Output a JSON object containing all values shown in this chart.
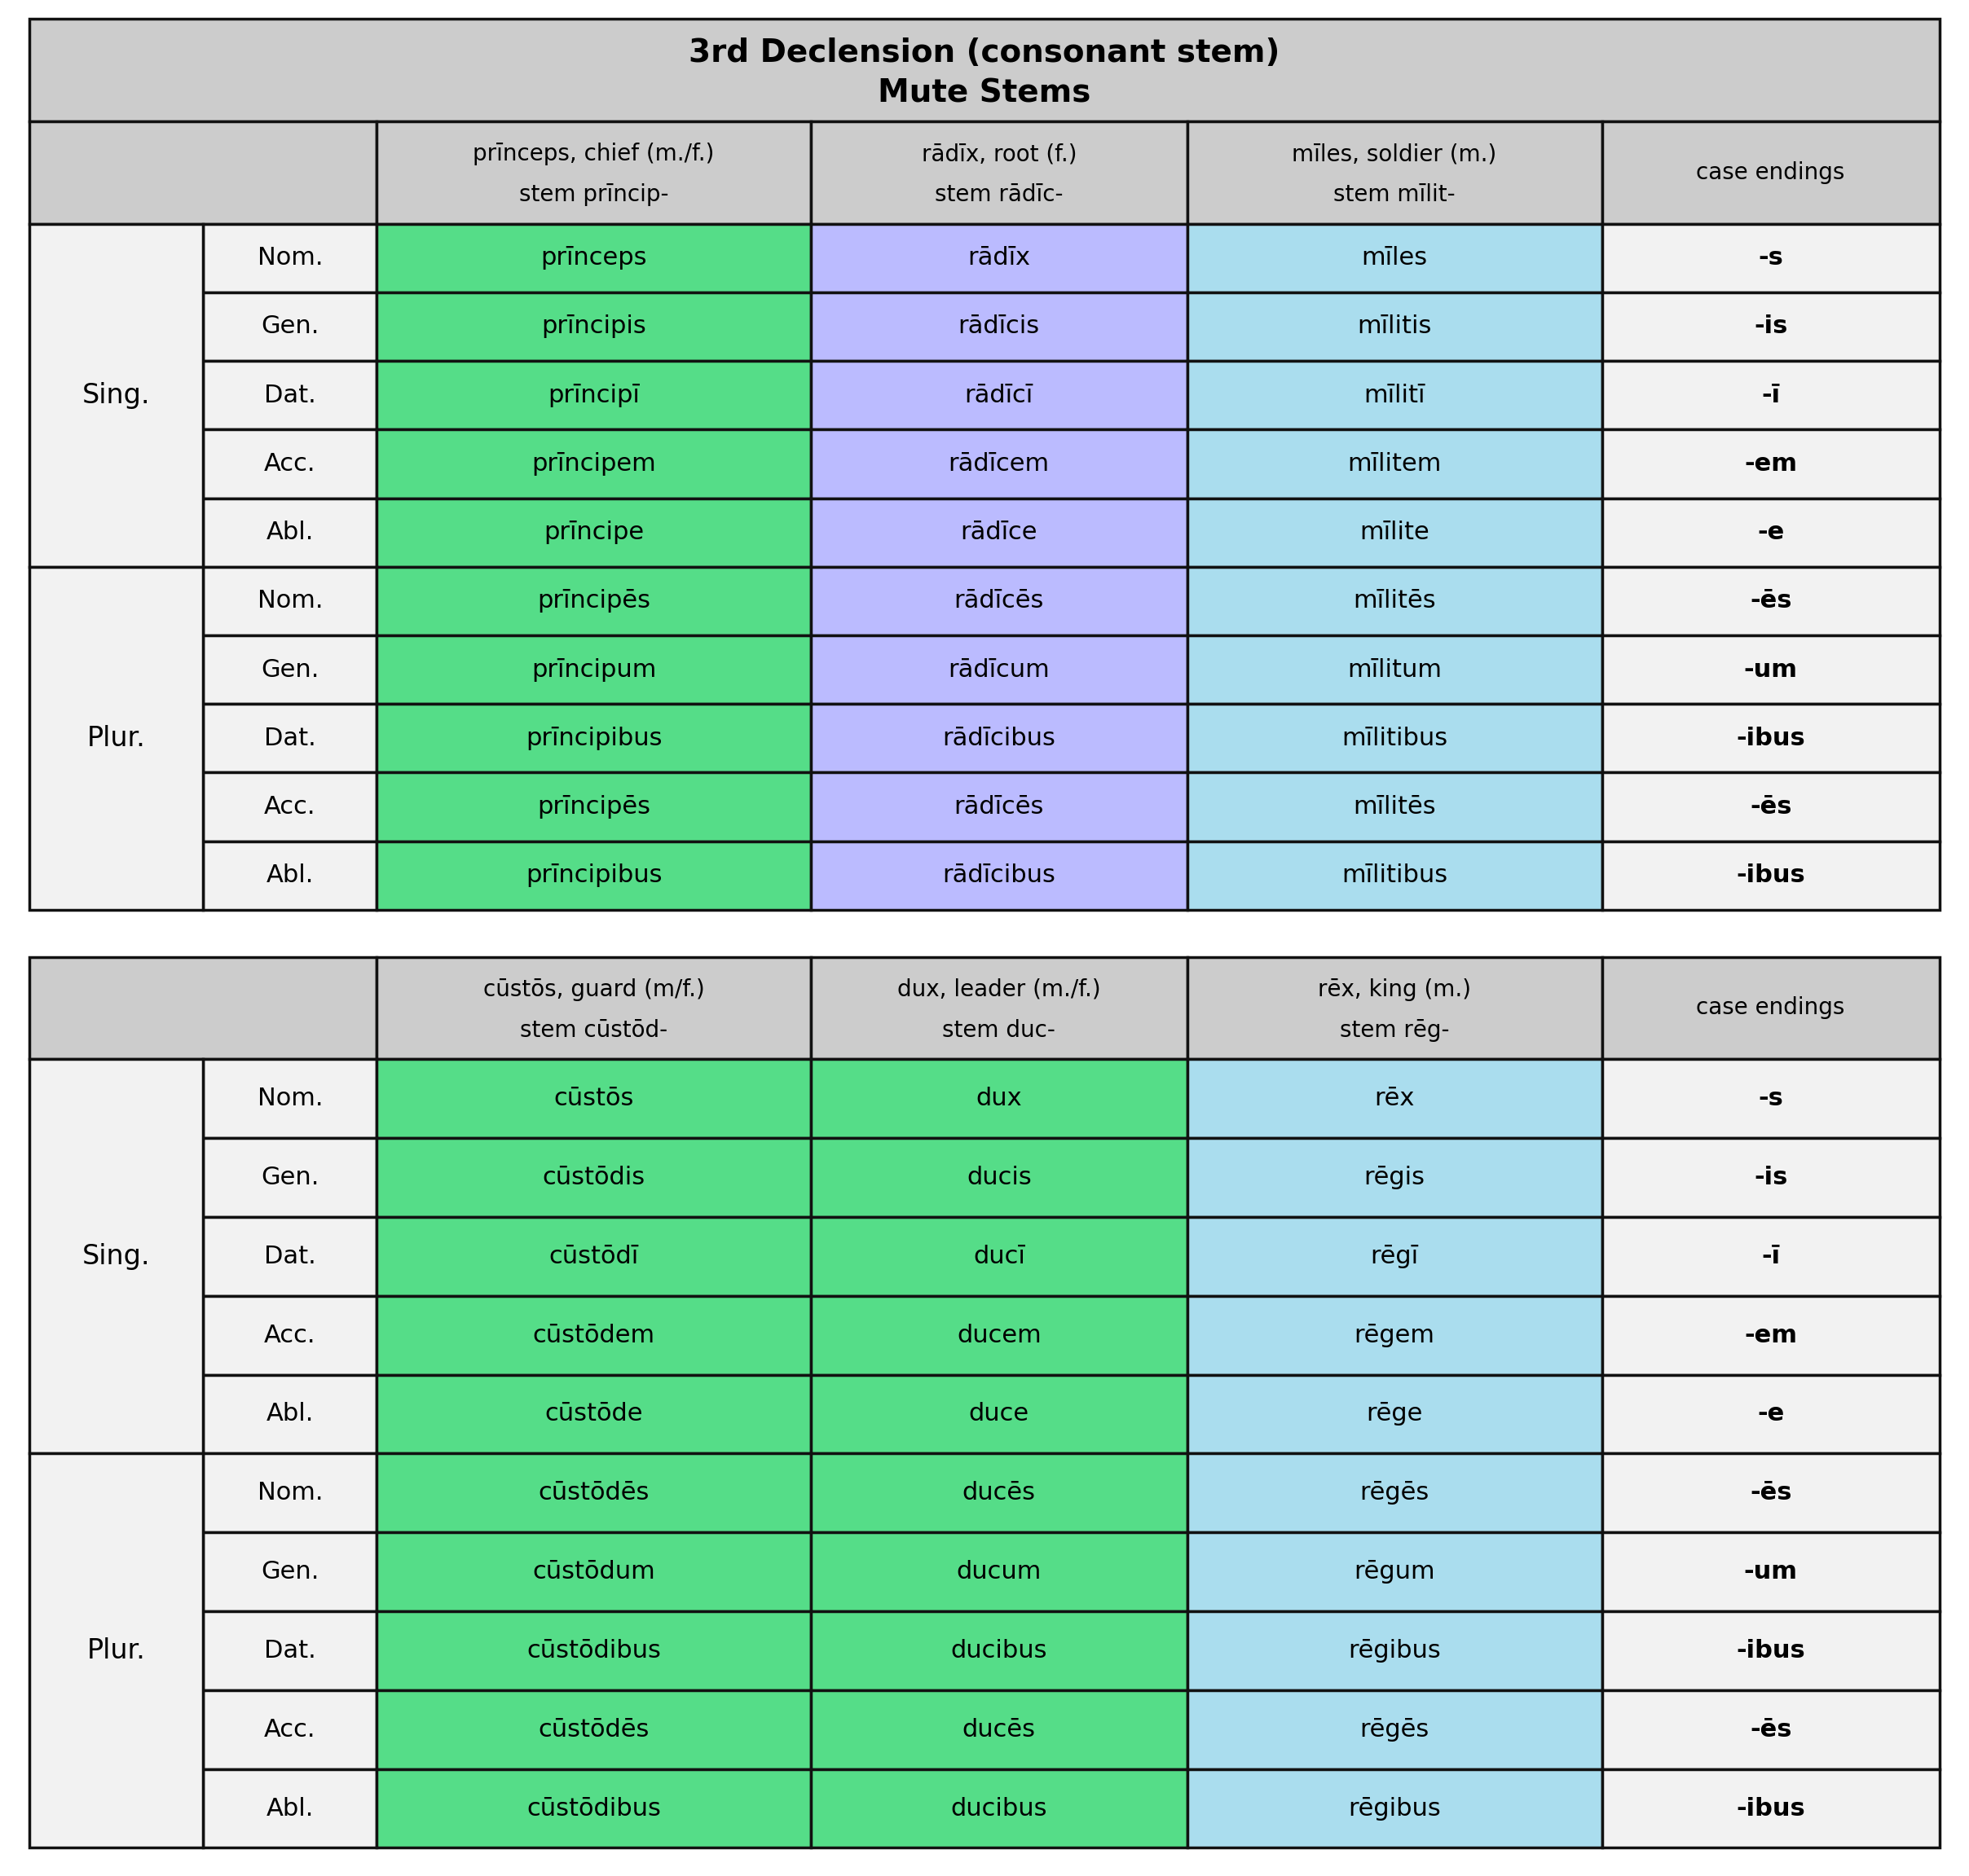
{
  "title1_line1": "3rd Declension (consonant stem)",
  "title1_line2": "Mute Stems",
  "header_bg": "#cccccc",
  "cell_green": "#55dd88",
  "cell_lavender": "#bbbbff",
  "cell_cyan": "#aaddee",
  "cell_white": "#f2f2f2",
  "border_color": "#111111",
  "table1": {
    "col_headers": [
      "",
      "prīnceps, chief (m./f.)\nstem prīncip-",
      "rādīx, root (f.)\nstem rādīc-",
      "mīles, soldier (m.)\nstem mīlit-",
      "case endings"
    ],
    "col_colors": [
      "",
      "green",
      "lavender",
      "cyan",
      ""
    ],
    "rows": [
      [
        "Sing.",
        "Nom.",
        "prīnceps",
        "rādīx",
        "mīles",
        "-s"
      ],
      [
        "Sing.",
        "Gen.",
        "prīncipis",
        "rādīcis",
        "mīlitis",
        "-is"
      ],
      [
        "Sing.",
        "Dat.",
        "prīncipī",
        "rādīcī",
        "mīlitī",
        "-ī"
      ],
      [
        "Sing.",
        "Acc.",
        "prīncipem",
        "rādīcem",
        "mīlitem",
        "-em"
      ],
      [
        "Sing.",
        "Abl.",
        "prīncipe",
        "rādīce",
        "mīlite",
        "-e"
      ],
      [
        "Plur.",
        "Nom.",
        "prīncipēs",
        "rādīcēs",
        "mīlitēs",
        "-ēs"
      ],
      [
        "Plur.",
        "Gen.",
        "prīncipum",
        "rādīcum",
        "mīlitum",
        "-um"
      ],
      [
        "Plur.",
        "Dat.",
        "prīncipibus",
        "rādīcibus",
        "mīlitibus",
        "-ibus"
      ],
      [
        "Plur.",
        "Acc.",
        "prīncipēs",
        "rādīcēs",
        "mīlitēs",
        "-ēs"
      ],
      [
        "Plur.",
        "Abl.",
        "prīncipibus",
        "rādīcibus",
        "mīlitibus",
        "-ibus"
      ]
    ]
  },
  "table2": {
    "col_headers": [
      "",
      "cūstōs, guard (m/f.)\nstem cūstōd-",
      "dux, leader (m./f.)\nstem duc-",
      "rēx, king (m.)\nstem rēg-",
      "case endings"
    ],
    "col_colors": [
      "",
      "green",
      "green",
      "cyan",
      ""
    ],
    "rows": [
      [
        "Sing.",
        "Nom.",
        "cūstōs",
        "dux",
        "rēx",
        "-s"
      ],
      [
        "Sing.",
        "Gen.",
        "cūstōdis",
        "ducis",
        "rēgis",
        "-is"
      ],
      [
        "Sing.",
        "Dat.",
        "cūstōdī",
        "ducī",
        "rēgī",
        "-ī"
      ],
      [
        "Sing.",
        "Acc.",
        "cūstōdem",
        "ducem",
        "rēgem",
        "-em"
      ],
      [
        "Sing.",
        "Abl.",
        "cūstōde",
        "duce",
        "rēge",
        "-e"
      ],
      [
        "Plur.",
        "Nom.",
        "cūstōdēs",
        "ducēs",
        "rēgēs",
        "-ēs"
      ],
      [
        "Plur.",
        "Gen.",
        "cūstōdum",
        "ducum",
        "rēgum",
        "-um"
      ],
      [
        "Plur.",
        "Dat.",
        "cūstōdibus",
        "ducibus",
        "rēgibus",
        "-ibus"
      ],
      [
        "Plur.",
        "Acc.",
        "cūstōdēs",
        "ducēs",
        "rēgēs",
        "-ēs"
      ],
      [
        "Plur.",
        "Abl.",
        "cūstōdibus",
        "ducibus",
        "rēgibus",
        "-ibus"
      ]
    ]
  }
}
